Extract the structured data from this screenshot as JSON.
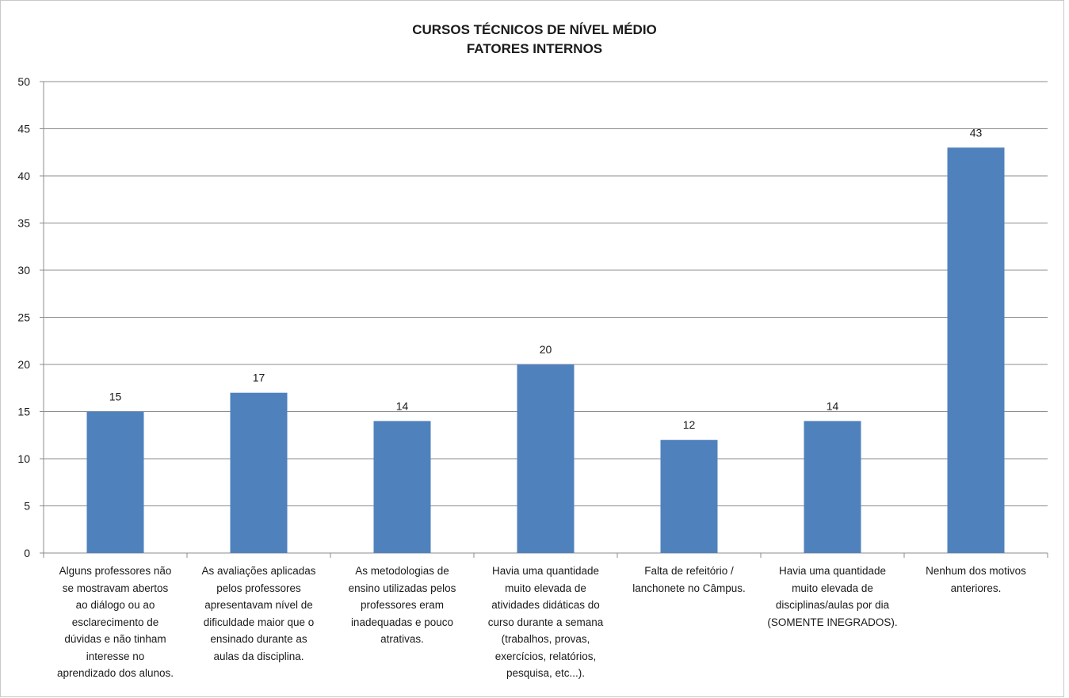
{
  "chart_data": {
    "type": "bar",
    "title": [
      "CURSOS TÉCNICOS DE NÍVEL MÉDIO",
      "FATORES INTERNOS"
    ],
    "categories": [
      [
        "Alguns professores não",
        "se mostravam abertos",
        "ao diálogo ou ao",
        "esclarecimento de",
        "dúvidas e não tinham",
        "interesse no",
        "aprendizado dos alunos."
      ],
      [
        "As avaliações aplicadas",
        "pelos professores",
        "apresentavam nível de",
        "dificuldade maior que o",
        "ensinado durante as",
        "aulas da disciplina."
      ],
      [
        "As metodologias de",
        "ensino utilizadas pelos",
        "professores eram",
        "inadequadas e pouco",
        "atrativas."
      ],
      [
        "Havia uma quantidade",
        "muito elevada de",
        "atividades didáticas do",
        "curso durante a semana",
        "(trabalhos, provas,",
        "exercícios, relatórios,",
        "pesquisa, etc...)."
      ],
      [
        "Falta de refeitório /",
        "lanchonete no Câmpus."
      ],
      [
        "Havia uma quantidade",
        "muito elevada de",
        "disciplinas/aulas por dia",
        "(SOMENTE INEGRADOS)."
      ],
      [
        "Nenhum dos motivos",
        "anteriores."
      ]
    ],
    "values": [
      15,
      17,
      14,
      20,
      12,
      14,
      43
    ],
    "ylim": [
      0,
      50
    ],
    "yticks": [
      0,
      5,
      10,
      15,
      20,
      25,
      30,
      35,
      40,
      45,
      50
    ],
    "grid": true,
    "data_labels": true,
    "bar_color": "#4f81bd",
    "grid_color": "#8c8c8c"
  }
}
